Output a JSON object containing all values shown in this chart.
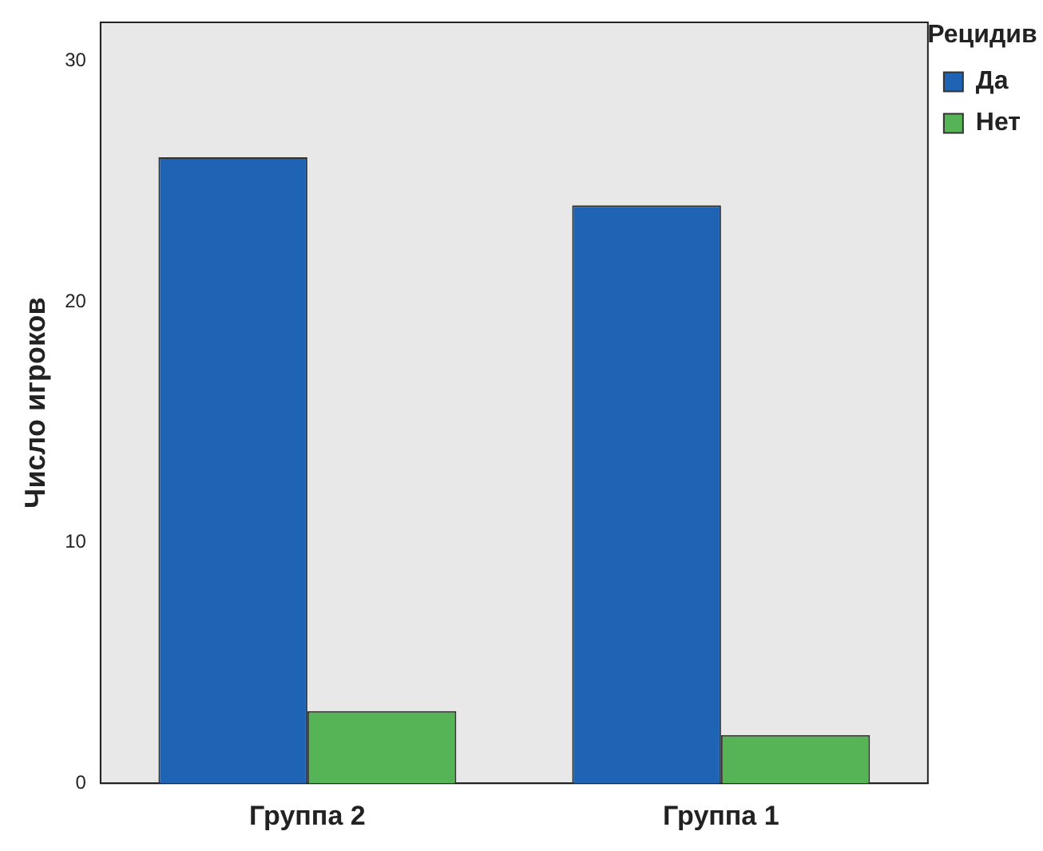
{
  "chart_data": {
    "type": "bar",
    "ylabel": "Число игроков",
    "legend_title": "Рецидив",
    "categories": [
      "Группа 2",
      "Группа 1"
    ],
    "series": [
      {
        "name": "Да",
        "color": "#1f64b4",
        "values": [
          26,
          24
        ]
      },
      {
        "name": "Нет",
        "color": "#56b456",
        "values": [
          3,
          2
        ]
      }
    ],
    "ylim": [
      0,
      31.6
    ],
    "yticks": [
      0,
      10,
      20,
      30
    ],
    "grid": false,
    "legend": "top right"
  }
}
